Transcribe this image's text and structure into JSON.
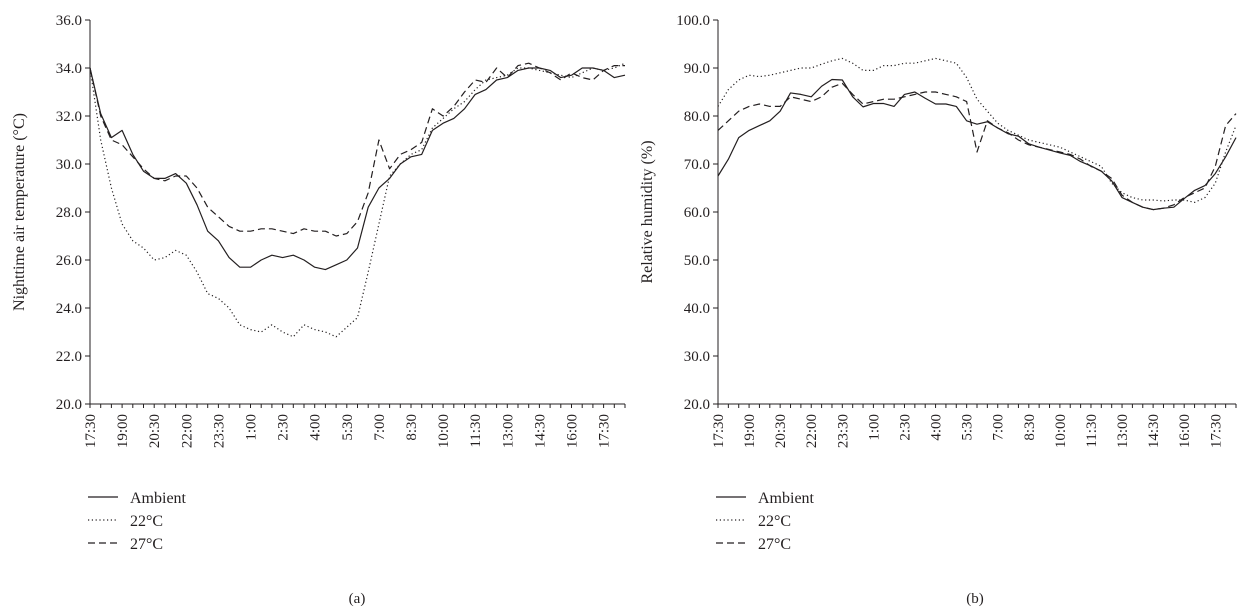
{
  "chart_data": [
    {
      "type": "line",
      "panel_label": "(a)",
      "ylabel": "Nighttime air temperature (°C)",
      "xlabel": "",
      "ylim": [
        20,
        36
      ],
      "y_ticks": [
        "20.0",
        "22.0",
        "24.0",
        "26.0",
        "28.0",
        "30.0",
        "32.0",
        "34.0",
        "36.0"
      ],
      "grid": false,
      "legend_position": "bottom-left",
      "x_tick_every": 3,
      "x": [
        "17:30",
        "18:00",
        "18:30",
        "19:00",
        "19:30",
        "20:00",
        "20:30",
        "21:00",
        "21:30",
        "22:00",
        "22:30",
        "23:00",
        "23:30",
        "0:00",
        "0:30",
        "1:00",
        "1:30",
        "2:00",
        "2:30",
        "3:00",
        "3:30",
        "4:00",
        "4:30",
        "5:00",
        "5:30",
        "6:00",
        "6:30",
        "7:00",
        "7:30",
        "8:00",
        "8:30",
        "9:00",
        "9:30",
        "10:00",
        "10:30",
        "11:00",
        "11:30",
        "12:00",
        "12:30",
        "13:00",
        "13:30",
        "14:00",
        "14:30",
        "15:00",
        "15:30",
        "16:00",
        "16:30",
        "17:00",
        "17:30",
        "18:00",
        "18:30"
      ],
      "series": [
        {
          "name": "Ambient",
          "dash": "solid",
          "values": [
            34.0,
            32.1,
            31.1,
            31.4,
            30.4,
            29.7,
            29.4,
            29.4,
            29.6,
            29.2,
            28.3,
            27.2,
            26.8,
            26.1,
            25.7,
            25.7,
            26.0,
            26.2,
            26.1,
            26.2,
            26.0,
            25.7,
            25.6,
            25.8,
            26.0,
            26.5,
            28.2,
            29.0,
            29.4,
            30.0,
            30.3,
            30.4,
            31.4,
            31.7,
            31.9,
            32.3,
            32.9,
            33.1,
            33.5,
            33.6,
            33.9,
            34.0,
            34.0,
            33.9,
            33.6,
            33.7,
            34.0,
            34.0,
            33.9,
            33.6,
            33.7
          ]
        },
        {
          "name": "22°C",
          "dash": "dotted",
          "values": [
            34.0,
            31.0,
            29.0,
            27.5,
            26.8,
            26.5,
            26.0,
            26.1,
            26.4,
            26.2,
            25.5,
            24.6,
            24.4,
            24.0,
            23.3,
            23.1,
            23.0,
            23.3,
            23.0,
            22.8,
            23.3,
            23.1,
            23.0,
            22.8,
            23.2,
            23.6,
            25.5,
            27.5,
            29.5,
            30.0,
            30.4,
            30.6,
            31.5,
            31.9,
            32.3,
            32.6,
            33.1,
            33.5,
            33.6,
            33.7,
            34.0,
            34.0,
            33.9,
            33.8,
            33.7,
            33.6,
            33.8,
            34.0,
            33.9,
            34.0,
            34.2
          ]
        },
        {
          "name": "27°C",
          "dash": "dashed",
          "values": [
            34.0,
            32.0,
            31.0,
            30.8,
            30.3,
            29.8,
            29.4,
            29.3,
            29.5,
            29.5,
            29.0,
            28.2,
            27.8,
            27.4,
            27.2,
            27.2,
            27.3,
            27.3,
            27.2,
            27.1,
            27.3,
            27.2,
            27.2,
            27.0,
            27.1,
            27.6,
            28.8,
            31.0,
            29.8,
            30.4,
            30.6,
            30.9,
            32.3,
            32.0,
            32.4,
            33.0,
            33.5,
            33.4,
            34.0,
            33.6,
            34.1,
            34.2,
            34.0,
            33.8,
            33.5,
            33.8,
            33.6,
            33.5,
            33.9,
            34.1,
            34.1
          ]
        }
      ]
    },
    {
      "type": "line",
      "panel_label": "(b)",
      "ylabel": "Relative humidity (%)",
      "xlabel": "",
      "ylim": [
        20,
        100
      ],
      "y_ticks": [
        "20.0",
        "30.0",
        "40.0",
        "50.0",
        "60.0",
        "70.0",
        "80.0",
        "90.0",
        "100.0"
      ],
      "grid": false,
      "legend_position": "bottom-left",
      "x_tick_every": 3,
      "x": [
        "17:30",
        "18:00",
        "18:30",
        "19:00",
        "19:30",
        "20:00",
        "20:30",
        "21:00",
        "21:30",
        "22:00",
        "22:30",
        "23:00",
        "23:30",
        "0:00",
        "0:30",
        "1:00",
        "1:30",
        "2:00",
        "2:30",
        "3:00",
        "3:30",
        "4:00",
        "4:30",
        "5:00",
        "5:30",
        "6:00",
        "6:30",
        "7:00",
        "7:30",
        "8:00",
        "8:30",
        "9:00",
        "9:30",
        "10:00",
        "10:30",
        "11:00",
        "11:30",
        "12:00",
        "12:30",
        "13:00",
        "13:30",
        "14:00",
        "14:30",
        "15:00",
        "15:30",
        "16:00",
        "16:30",
        "17:00",
        "17:30",
        "18:00",
        "18:30"
      ],
      "series": [
        {
          "name": "Ambient",
          "dash": "solid",
          "values": [
            67.5,
            71.0,
            75.5,
            77.0,
            78.0,
            79.0,
            81.0,
            84.8,
            84.5,
            84.0,
            86.2,
            87.6,
            87.5,
            84.0,
            81.9,
            82.6,
            82.6,
            82.0,
            84.5,
            85.0,
            83.7,
            82.5,
            82.5,
            82.0,
            79.0,
            78.3,
            78.8,
            77.5,
            76.3,
            75.8,
            74.2,
            73.5,
            72.9,
            72.3,
            71.8,
            70.5,
            69.6,
            68.5,
            66.5,
            63.0,
            62.0,
            61.0,
            60.5,
            60.8,
            61.0,
            62.8,
            64.5,
            65.5,
            68.0,
            71.5,
            75.5
          ]
        },
        {
          "name": "22°C",
          "dash": "dotted",
          "values": [
            82.0,
            85.5,
            87.5,
            88.5,
            88.2,
            88.5,
            89.0,
            89.5,
            90.0,
            90.0,
            90.8,
            91.5,
            92.0,
            91.0,
            89.5,
            89.5,
            90.5,
            90.5,
            91.0,
            91.0,
            91.5,
            92.0,
            91.5,
            91.0,
            88.0,
            83.5,
            81.0,
            78.5,
            77.0,
            76.0,
            75.0,
            74.5,
            74.0,
            73.5,
            72.5,
            71.5,
            70.5,
            69.5,
            66.0,
            64.0,
            63.0,
            62.5,
            62.5,
            62.3,
            62.5,
            62.5,
            62.0,
            63.0,
            66.0,
            72.5,
            78.0
          ]
        },
        {
          "name": "27°C",
          "dash": "dashed",
          "values": [
            77.0,
            79.0,
            81.0,
            82.0,
            82.5,
            82.0,
            82.0,
            84.0,
            83.5,
            83.0,
            84.0,
            86.0,
            86.8,
            84.5,
            82.5,
            83.0,
            83.5,
            83.5,
            84.0,
            84.5,
            85.0,
            85.0,
            84.5,
            84.0,
            83.0,
            72.5,
            79.0,
            77.5,
            76.5,
            75.0,
            74.0,
            73.5,
            73.0,
            72.5,
            72.0,
            71.0,
            69.5,
            68.5,
            67.0,
            63.5,
            62.0,
            61.0,
            60.5,
            60.8,
            61.5,
            63.0,
            64.0,
            65.0,
            69.5,
            78.0,
            80.5
          ]
        }
      ]
    }
  ]
}
